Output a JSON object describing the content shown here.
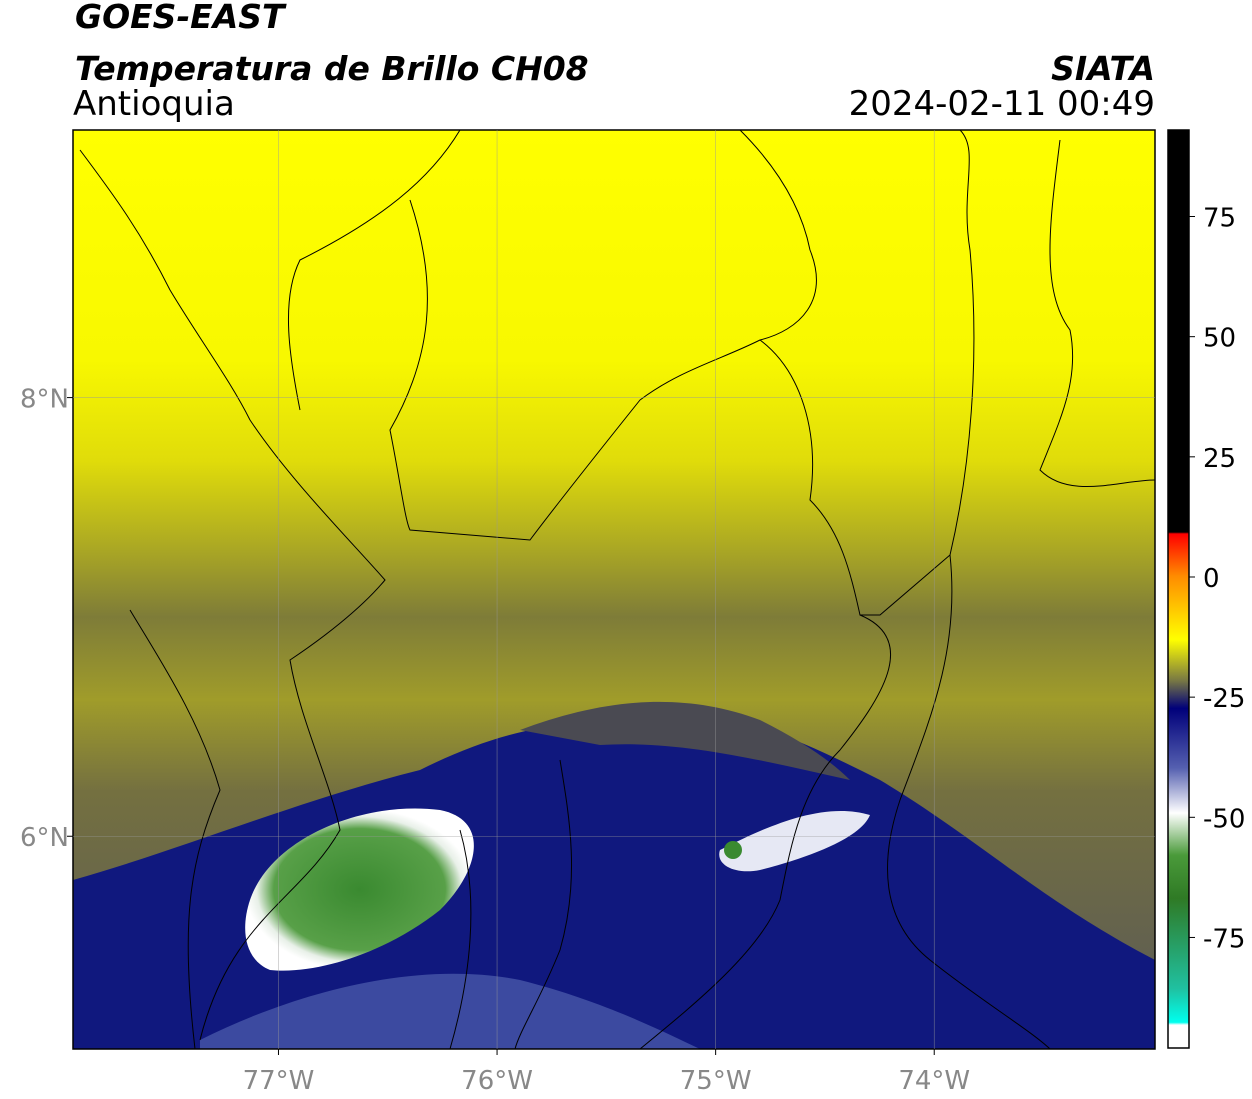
{
  "header": {
    "title": "GOES-EAST",
    "subtitle": "Temperatura de Brillo CH08",
    "region": "Antioquia",
    "source": "SIATA",
    "datetime": "2024-02-11 00:49"
  },
  "map": {
    "xlim": [
      -77.94,
      -72.99
    ],
    "ylim": [
      5.03,
      9.22
    ],
    "xticks": [
      {
        "value": -77,
        "label": "77°W"
      },
      {
        "value": -76,
        "label": "76°W"
      },
      {
        "value": -75,
        "label": "75°W"
      },
      {
        "value": -74,
        "label": "74°W"
      }
    ],
    "yticks": [
      {
        "value": 6,
        "label": "6°N"
      },
      {
        "value": 8,
        "label": "8°N"
      }
    ],
    "grid": true
  },
  "colorbar": {
    "lim": [
      -98,
      93
    ],
    "ticks": [
      -75,
      -50,
      -25,
      0,
      25,
      50,
      75
    ]
  }
}
